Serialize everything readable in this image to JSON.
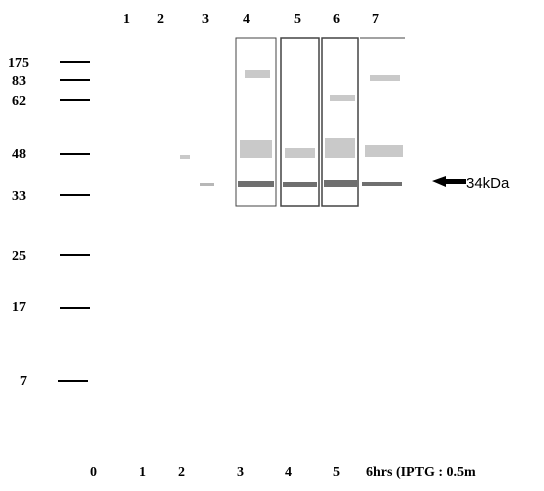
{
  "top_lanes": [
    "1",
    "2",
    "3",
    "4",
    "5",
    "6",
    "7"
  ],
  "markers": [
    "175",
    "83",
    "62",
    "48",
    "33",
    "25",
    "17",
    "7"
  ],
  "annotation": "34kDa",
  "bottom_lanes": [
    "0",
    "1",
    "2",
    "3",
    "4",
    "5"
  ],
  "bottom_note": "6hrs (IPTG : 0.5m"
}
